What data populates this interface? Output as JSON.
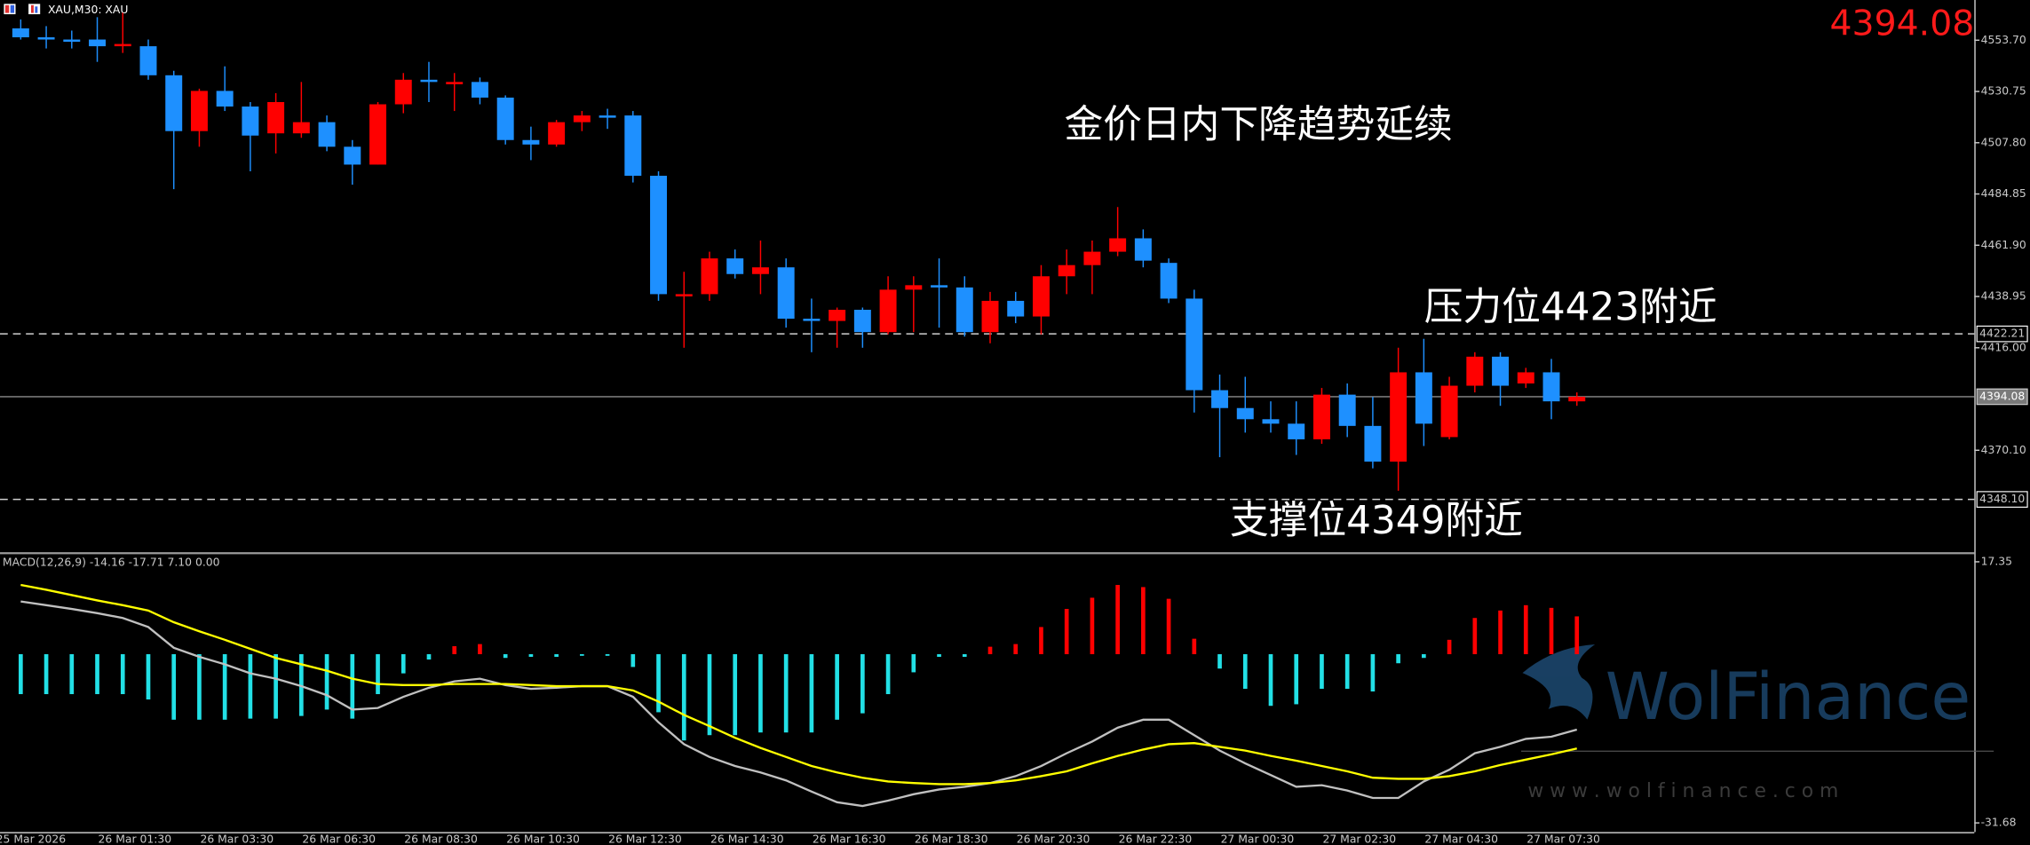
{
  "chart_data": [
    {
      "type": "candlestick",
      "symbol_label": "XAU,M30: XAU",
      "title": "金价日内下降趋势延续",
      "last_price": 4394.08,
      "annotations": [
        "压力位4423附近",
        "支撑位4349附近"
      ],
      "up_color": "#ff0000",
      "down_color": "#1e90ff",
      "categories": [
        "25 Mar 2026",
        null,
        null,
        null,
        "26 Mar 01:30",
        null,
        null,
        null,
        "26 Mar 03:30",
        null,
        null,
        null,
        "26 Mar 06:30",
        null,
        null,
        null,
        "26 Mar 08:30",
        null,
        null,
        null,
        "26 Mar 10:30",
        null,
        null,
        null,
        "26 Mar 12:30",
        null,
        null,
        null,
        "26 Mar 14:30",
        null,
        null,
        null,
        "26 Mar 16:30",
        null,
        null,
        null,
        "26 Mar 18:30",
        null,
        null,
        null,
        "26 Mar 20:30",
        null,
        null,
        null,
        "26 Mar 22:30",
        null,
        null,
        null,
        "27 Mar 00:30",
        null,
        null,
        null,
        "27 Mar 02:30",
        null,
        null,
        null,
        "27 Mar 04:30",
        null,
        null,
        null,
        "27 Mar 07:30",
        null
      ],
      "open": [
        4559,
        4555,
        4554,
        4554,
        4551,
        4551,
        4538,
        4513,
        4531,
        4524,
        4512,
        4512,
        4517,
        4506,
        4498,
        4525,
        4536,
        4534,
        4535,
        4528,
        4509,
        4507,
        4517,
        4520,
        4520,
        4493,
        4439,
        4440,
        4456,
        4449,
        4452,
        4429,
        4428,
        4433,
        4423,
        4442,
        4444,
        4443,
        4423,
        4437,
        4430,
        4448,
        4453,
        4459,
        4465,
        4454,
        4438,
        4397,
        4389,
        4384,
        4382,
        4375,
        4395,
        4381,
        4365,
        4405,
        4376,
        4399,
        4412,
        4400,
        4405,
        4392
      ],
      "high": [
        4563,
        4560,
        4558,
        4564,
        4566,
        4554,
        4540,
        4532,
        4542,
        4526,
        4530,
        4535,
        4520,
        4509,
        4526,
        4539,
        4544,
        4539,
        4537,
        4529,
        4515,
        4518,
        4522,
        4523,
        4522,
        4495,
        4450,
        4459,
        4460,
        4464,
        4456,
        4438,
        4434,
        4434,
        4448,
        4448,
        4456,
        4448,
        4441,
        4441,
        4453,
        4460,
        4464,
        4479,
        4469,
        4456,
        4442,
        4404,
        4403,
        4392,
        4392,
        4398,
        4400,
        4394,
        4416,
        4420,
        4403,
        4414,
        4414,
        4407,
        4411,
        4396
      ],
      "low": [
        4554,
        4550,
        4550,
        4544,
        4548,
        4536,
        4487,
        4506,
        4522,
        4495,
        4503,
        4510,
        4504,
        4489,
        4498,
        4521,
        4526,
        4522,
        4525,
        4507,
        4500,
        4506,
        4513,
        4514,
        4490,
        4437,
        4416,
        4437,
        4447,
        4440,
        4425,
        4414,
        4416,
        4416,
        4422,
        4423,
        4425,
        4421,
        4418,
        4427,
        4422,
        4440,
        4440,
        4457,
        4452,
        4436,
        4387,
        4367,
        4378,
        4378,
        4368,
        4373,
        4376,
        4362,
        4352,
        4372,
        4375,
        4396,
        4390,
        4398,
        4384,
        4390
      ],
      "close": [
        4555,
        4554,
        4553,
        4551,
        4552,
        4538,
        4513,
        4531,
        4524,
        4511,
        4526,
        4517,
        4506,
        4498,
        4525,
        4536,
        4535,
        4535,
        4528,
        4509,
        4507,
        4517,
        4520,
        4519,
        4493,
        4440,
        4440,
        4456,
        4449,
        4452,
        4429,
        4428,
        4433,
        4423,
        4442,
        4444,
        4443,
        4423,
        4437,
        4430,
        4448,
        4453,
        4459,
        4465,
        4455,
        4438,
        4397,
        4389,
        4384,
        4382,
        4375,
        4395,
        4381,
        4365,
        4405,
        4382,
        4399,
        4412,
        4399,
        4405,
        4392,
        4394.08
      ],
      "ylim": [
        4324.3,
        4571.7
      ],
      "yticks": [
        {
          "value": 4553.7,
          "label": "4553.70"
        },
        {
          "value": 4530.75,
          "label": "4530.75"
        },
        {
          "value": 4507.8,
          "label": "4507.80"
        },
        {
          "value": 4484.85,
          "label": "4484.85"
        },
        {
          "value": 4461.9,
          "label": "4461.90"
        },
        {
          "value": 4438.95,
          "label": "4438.95"
        },
        {
          "value": 4416,
          "label": "4416.00"
        },
        {
          "value": 4370.1,
          "label": "4370.10"
        }
      ],
      "levels": [
        {
          "value": 4422.21,
          "label": "4422.21"
        },
        {
          "value": 4348.1,
          "label": "4348.10"
        }
      ]
    },
    {
      "type": "macd",
      "label": "MACD(12,26,9) -14.16 -17.71 7.10 0.00",
      "histogram": {
        "up_color": "#ff0000",
        "down_color": "#22e0e6",
        "values": [
          -7.5,
          -7.5,
          -7.5,
          -7.5,
          -7.5,
          -8.5,
          -12.3,
          -12.3,
          -12.3,
          -12.1,
          -12.1,
          -11.6,
          -10.4,
          -12.1,
          -7.5,
          -3.6,
          -1.0,
          1.5,
          1.9,
          -0.7,
          -0.5,
          -0.5,
          -0.3,
          -0.3,
          -2.4,
          -10.9,
          -16.2,
          -15.2,
          -15.2,
          -14.7,
          -14.7,
          -14.7,
          -12.3,
          -11.1,
          -7.5,
          -3.4,
          -0.5,
          -0.5,
          1.4,
          1.9,
          5.1,
          8.5,
          10.6,
          13.0,
          12.6,
          10.4,
          2.9,
          -2.7,
          -6.5,
          -9.7,
          -9.4,
          -6.5,
          -6.5,
          -7.0,
          -1.7,
          -0.7,
          2.7,
          6.8,
          8.2,
          9.2,
          8.7,
          7.1
        ]
      },
      "macd_line": {
        "color": "#c0c0c0",
        "values": [
          9.9,
          9.2,
          8.5,
          7.7,
          6.8,
          5.1,
          1.2,
          -0.5,
          -1.9,
          -3.6,
          -4.6,
          -6.0,
          -7.7,
          -10.4,
          -10.1,
          -8.0,
          -6.3,
          -5.1,
          -4.6,
          -5.8,
          -6.5,
          -6.3,
          -6.0,
          -6.0,
          -8.0,
          -12.8,
          -16.9,
          -19.3,
          -21.0,
          -22.2,
          -23.7,
          -25.8,
          -27.8,
          -28.5,
          -27.5,
          -26.3,
          -25.4,
          -24.9,
          -24.2,
          -22.9,
          -21.0,
          -18.6,
          -16.4,
          -13.8,
          -12.3,
          -12.3,
          -15.2,
          -18.1,
          -20.5,
          -22.7,
          -24.9,
          -24.6,
          -25.6,
          -27.0,
          -27.0,
          -23.9,
          -21.7,
          -18.6,
          -17.4,
          -15.9,
          -15.5,
          -14.16
        ]
      },
      "signal_line": {
        "color": "#ffff00",
        "values": [
          13.0,
          12.1,
          11.1,
          10.1,
          9.2,
          8.2,
          6.0,
          4.3,
          2.7,
          1.0,
          -0.7,
          -1.9,
          -3.1,
          -4.6,
          -5.6,
          -5.8,
          -5.8,
          -5.6,
          -5.6,
          -5.6,
          -5.8,
          -6.0,
          -6.0,
          -6.0,
          -6.8,
          -8.9,
          -11.4,
          -13.5,
          -15.7,
          -17.6,
          -19.3,
          -21.0,
          -22.2,
          -23.2,
          -23.9,
          -24.2,
          -24.4,
          -24.4,
          -24.2,
          -23.7,
          -22.9,
          -22.0,
          -20.5,
          -19.1,
          -17.9,
          -16.9,
          -16.7,
          -17.4,
          -18.1,
          -19.1,
          -20.0,
          -21.0,
          -22.0,
          -23.2,
          -23.4,
          -23.4,
          -22.9,
          -22.0,
          -20.8,
          -19.8,
          -18.8,
          -17.71
        ]
      },
      "ylim": [
        -33.4,
        18.6
      ],
      "yticks": [
        17.35,
        -31.68
      ],
      "watermark": {
        "brand": "WolFinance",
        "url": "w w w . w o l f i n a n c e . c o m"
      }
    }
  ]
}
